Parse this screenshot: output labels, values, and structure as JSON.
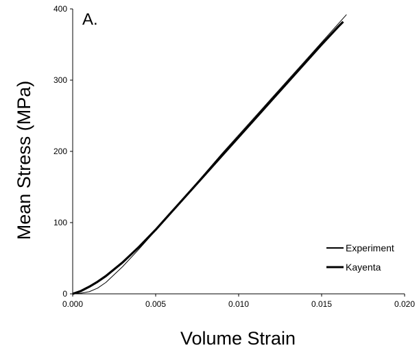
{
  "chart_data": {
    "type": "line",
    "panel_label": "A.",
    "xlabel": "Volume Strain",
    "ylabel": "Mean Stress (MPa)",
    "xlim": [
      0,
      0.02
    ],
    "ylim": [
      0,
      400
    ],
    "x_ticks": [
      "0.000",
      "0.005",
      "0.010",
      "0.015",
      "0.020"
    ],
    "y_ticks": [
      "0",
      "100",
      "200",
      "300",
      "400"
    ],
    "grid": false,
    "legend_position": "bottom-right",
    "series": [
      {
        "name": "Experiment",
        "color": "#000000",
        "style": "thin",
        "x": [
          0.0,
          0.0005,
          0.001,
          0.0015,
          0.002,
          0.003,
          0.004,
          0.005,
          0.006,
          0.007,
          0.008,
          0.009,
          0.01,
          0.011,
          0.012,
          0.013,
          0.014,
          0.015,
          0.016,
          0.0165
        ],
        "y": [
          0,
          1,
          3,
          8,
          16,
          38,
          63,
          89,
          116,
          143,
          170,
          197,
          223,
          249,
          275,
          301,
          327,
          353,
          379,
          392
        ]
      },
      {
        "name": "Kayenta",
        "color": "#000000",
        "style": "thick",
        "x": [
          0.0,
          0.0005,
          0.001,
          0.0015,
          0.002,
          0.003,
          0.004,
          0.005,
          0.006,
          0.007,
          0.008,
          0.009,
          0.01,
          0.011,
          0.012,
          0.013,
          0.014,
          0.015,
          0.016,
          0.0163
        ],
        "y": [
          0,
          4,
          10,
          17,
          25,
          44,
          66,
          90,
          116,
          142,
          168,
          194,
          220,
          246,
          272,
          298,
          324,
          350,
          375,
          382
        ]
      }
    ]
  }
}
